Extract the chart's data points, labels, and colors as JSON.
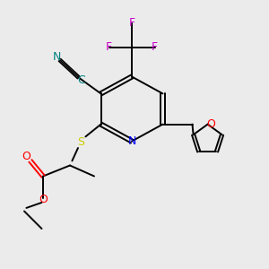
{
  "bg_color": "#ebebeb",
  "atom_colors": {
    "C": "#000000",
    "N": "#0000ff",
    "O": "#ff0000",
    "S": "#cccc00",
    "F": "#cc00cc",
    "CN_label": "#008080"
  },
  "figsize": [
    3.0,
    3.0
  ],
  "dpi": 100
}
